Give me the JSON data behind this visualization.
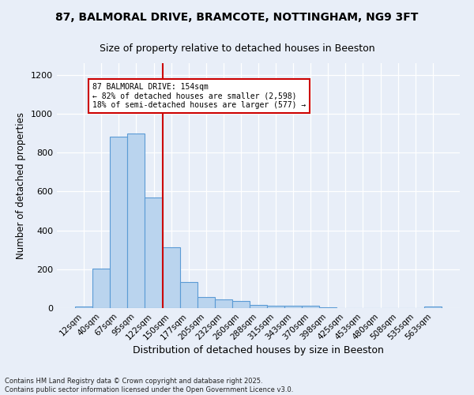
{
  "title": "87, BALMORAL DRIVE, BRAMCOTE, NOTTINGHAM, NG9 3FT",
  "subtitle": "Size of property relative to detached houses in Beeston",
  "xlabel": "Distribution of detached houses by size in Beeston",
  "ylabel": "Number of detached properties",
  "categories": [
    "12sqm",
    "40sqm",
    "67sqm",
    "95sqm",
    "122sqm",
    "150sqm",
    "177sqm",
    "205sqm",
    "232sqm",
    "260sqm",
    "288sqm",
    "315sqm",
    "343sqm",
    "370sqm",
    "398sqm",
    "425sqm",
    "453sqm",
    "480sqm",
    "508sqm",
    "535sqm",
    "563sqm"
  ],
  "values": [
    10,
    205,
    880,
    900,
    570,
    315,
    135,
    57,
    43,
    38,
    15,
    13,
    13,
    12,
    4,
    2,
    2,
    1,
    0,
    0,
    8
  ],
  "bar_color": "#bad4ee",
  "bar_edge_color": "#5b9bd5",
  "vline_color": "#cc0000",
  "vline_index": 5,
  "annotation_title": "87 BALMORAL DRIVE: 154sqm",
  "annotation_line1": "← 82% of detached houses are smaller (2,598)",
  "annotation_line2": "18% of semi-detached houses are larger (577) →",
  "annotation_box_color": "#cc0000",
  "ylim": [
    0,
    1260
  ],
  "yticks": [
    0,
    200,
    400,
    600,
    800,
    1000,
    1200
  ],
  "footer_line1": "Contains HM Land Registry data © Crown copyright and database right 2025.",
  "footer_line2": "Contains public sector information licensed under the Open Government Licence v3.0.",
  "bg_color": "#e8eef8"
}
